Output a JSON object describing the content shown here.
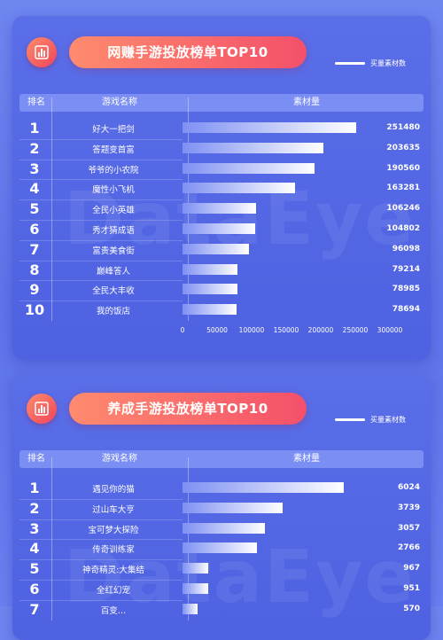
{
  "colors": {
    "background": "#6a7ff0",
    "card": "#5266e4",
    "pill_start": "#ff8b6e",
    "pill_end": "#f4506a",
    "bar_end": "#ffffff"
  },
  "icon": "bar-chart-icon",
  "watermark": "DataEye",
  "chart_data": [
    {
      "type": "bar",
      "orientation": "horizontal",
      "title": "网赚手游投放榜单TOP10",
      "legend": "买量素材数",
      "legend_position": "top-right",
      "columns": [
        "排名",
        "游戏名称",
        "素材量"
      ],
      "ranks": [
        "1",
        "2",
        "3",
        "4",
        "5",
        "6",
        "7",
        "8",
        "9",
        "10"
      ],
      "categories": [
        "好大一把剑",
        "答题变首富",
        "爷爷的小农院",
        "魔性小飞机",
        "全民小英雄",
        "秀才猜成语",
        "富贵美食街",
        "巅峰答人",
        "全民大丰收",
        "我的饭店"
      ],
      "values": [
        251480,
        203635,
        190560,
        163281,
        106246,
        104802,
        96098,
        79214,
        78985,
        78694
      ],
      "value_labels": [
        "251480",
        "203635",
        "190560",
        "163281",
        "106246",
        "104802",
        "96098",
        "79214",
        "78985",
        "78694"
      ],
      "xlim": [
        0,
        300000
      ],
      "xticks": [
        "0",
        "50000",
        "100000",
        "150000",
        "200000",
        "250000",
        "300000"
      ]
    },
    {
      "type": "bar",
      "orientation": "horizontal",
      "title": "养成手游投放榜单TOP10",
      "legend": "买量素材数",
      "legend_position": "top-right",
      "columns": [
        "排名",
        "游戏名称",
        "素材量"
      ],
      "ranks": [
        "1",
        "2",
        "3",
        "4",
        "5",
        "6",
        "7"
      ],
      "categories": [
        "遇见你的猫",
        "过山车大亨",
        "宝可梦大探险",
        "传奇训练家",
        "神奇精灵:大集结",
        "全红幻宠",
        "百变…"
      ],
      "values": [
        6024,
        3739,
        3057,
        2766,
        967,
        951,
        570
      ],
      "value_labels": [
        "6024",
        "3739",
        "3057",
        "2766",
        "967",
        "951",
        "570"
      ],
      "xlim": [
        0,
        7000
      ]
    }
  ]
}
